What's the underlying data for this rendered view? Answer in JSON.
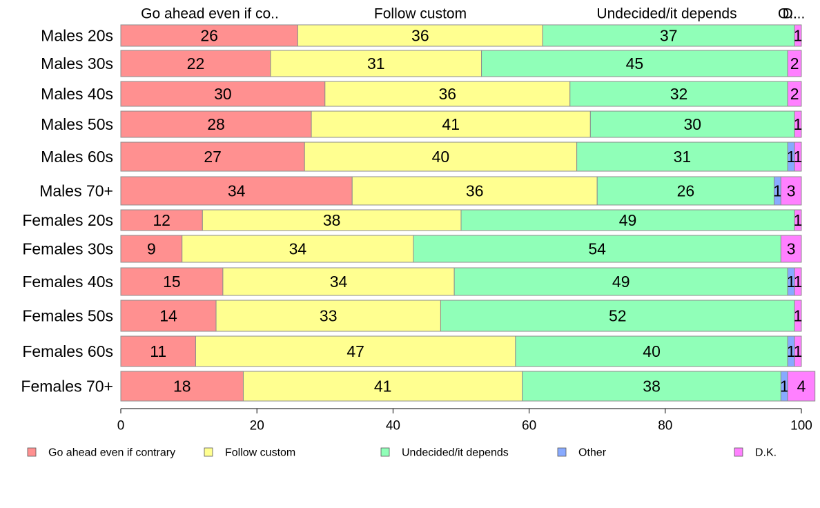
{
  "chart_data": {
    "type": "bar",
    "orientation": "horizontal",
    "stacked": true,
    "categories": [
      "Males 20s",
      "Males 30s",
      "Males 40s",
      "Males 50s",
      "Males 60s",
      "Males 70+",
      "Females 20s",
      "Females 30s",
      "Females 40s",
      "Females 50s",
      "Females 60s",
      "Females 70+"
    ],
    "series": [
      {
        "name": "Go ahead even if contrary",
        "color": "#ff9090",
        "values": [
          26,
          22,
          30,
          28,
          27,
          34,
          12,
          9,
          15,
          14,
          11,
          18
        ]
      },
      {
        "name": "Follow custom",
        "color": "#ffff90",
        "values": [
          36,
          31,
          36,
          41,
          40,
          36,
          38,
          34,
          34,
          33,
          47,
          41
        ]
      },
      {
        "name": "Undecided/it depends",
        "color": "#90ffb8",
        "values": [
          37,
          45,
          32,
          30,
          31,
          26,
          49,
          54,
          49,
          52,
          40,
          38
        ]
      },
      {
        "name": "Other",
        "color": "#88aaff",
        "values": [
          0,
          0,
          0,
          0,
          1,
          1,
          0,
          0,
          1,
          0,
          1,
          1
        ]
      },
      {
        "name": "D.K.",
        "color": "#ff80ff",
        "values": [
          1,
          2,
          2,
          1,
          1,
          3,
          1,
          3,
          1,
          1,
          1,
          4
        ]
      }
    ],
    "top_labels": [
      "Go ahead even if co..",
      "Follow custom",
      "Undecided/it depends",
      "O..",
      "D..."
    ],
    "xlim": [
      0,
      100
    ],
    "xticks": [
      0,
      20,
      40,
      60,
      80,
      100
    ],
    "grid": false,
    "legend_position": "bottom"
  }
}
